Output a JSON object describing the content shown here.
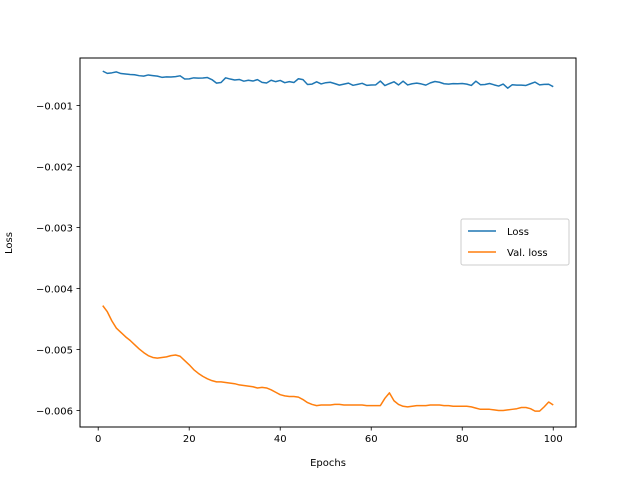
{
  "chart_data": {
    "type": "line",
    "xlabel": "Epochs",
    "ylabel": "Loss",
    "xlim": [
      -4,
      105
    ],
    "ylim": [
      -0.00627,
      -0.00022
    ],
    "xticks": [
      0,
      20,
      40,
      60,
      80,
      100
    ],
    "xtick_labels": [
      "0",
      "20",
      "40",
      "60",
      "80",
      "100"
    ],
    "yticks": [
      -0.001,
      -0.002,
      -0.003,
      -0.004,
      -0.005,
      -0.006
    ],
    "ytick_labels": [
      "−0.001",
      "−0.002",
      "−0.003",
      "−0.004",
      "−0.005",
      "−0.006"
    ],
    "grid": false,
    "legend_position": "center-right",
    "x": [
      1,
      2,
      3,
      4,
      5,
      6,
      7,
      8,
      9,
      10,
      11,
      12,
      13,
      14,
      15,
      16,
      17,
      18,
      19,
      20,
      21,
      22,
      23,
      24,
      25,
      26,
      27,
      28,
      29,
      30,
      31,
      32,
      33,
      34,
      35,
      36,
      37,
      38,
      39,
      40,
      41,
      42,
      43,
      44,
      45,
      46,
      47,
      48,
      49,
      50,
      51,
      52,
      53,
      54,
      55,
      56,
      57,
      58,
      59,
      60,
      61,
      62,
      63,
      64,
      65,
      66,
      67,
      68,
      69,
      70,
      71,
      72,
      73,
      74,
      75,
      76,
      77,
      78,
      79,
      80,
      81,
      82,
      83,
      84,
      85,
      86,
      87,
      88,
      89,
      90,
      91,
      92,
      93,
      94,
      95,
      96,
      97,
      98,
      99,
      100
    ],
    "series": [
      {
        "name": "Loss",
        "color": "#1f77b4",
        "values": [
          -0.000435,
          -0.000472,
          -0.000463,
          -0.000448,
          -0.000475,
          -0.000483,
          -0.00049,
          -0.000495,
          -0.00051,
          -0.000517,
          -0.000498,
          -0.000508,
          -0.000517,
          -0.000537,
          -0.00053,
          -0.000532,
          -0.000525,
          -0.000512,
          -0.000565,
          -0.000562,
          -0.000545,
          -0.00055,
          -0.000548,
          -0.00054,
          -0.000575,
          -0.000632,
          -0.000622,
          -0.000545,
          -0.000565,
          -0.00058,
          -0.000572,
          -0.0006,
          -0.000585,
          -0.000598,
          -0.000575,
          -0.00062,
          -0.00063,
          -0.000585,
          -0.000608,
          -0.000588,
          -0.000625,
          -0.000608,
          -0.000622,
          -0.00056,
          -0.000575,
          -0.000655,
          -0.000648,
          -0.00061,
          -0.000645,
          -0.000625,
          -0.000618,
          -0.00064,
          -0.000665,
          -0.000648,
          -0.000632,
          -0.000668,
          -0.000652,
          -0.000635,
          -0.000668,
          -0.000662,
          -0.00066,
          -0.000598,
          -0.000672,
          -0.00064,
          -0.00061,
          -0.000662,
          -0.0006,
          -0.000662,
          -0.000642,
          -0.000632,
          -0.000645,
          -0.000665,
          -0.000628,
          -0.000605,
          -0.000618,
          -0.000642,
          -0.000648,
          -0.00064,
          -0.000642,
          -0.000638,
          -0.000648,
          -0.00067,
          -0.0006,
          -0.000658,
          -0.000655,
          -0.000638,
          -0.00066,
          -0.00068,
          -0.000648,
          -0.000715,
          -0.000658,
          -0.000665,
          -0.000665,
          -0.00067,
          -0.000642,
          -0.000615,
          -0.00066,
          -0.000652,
          -0.00065,
          -0.00069
        ]
      },
      {
        "name": "Val. loss",
        "color": "#ff7f0e",
        "values": [
          -0.00428,
          -0.00438,
          -0.00453,
          -0.00465,
          -0.00472,
          -0.00479,
          -0.00485,
          -0.00492,
          -0.00499,
          -0.00505,
          -0.0051,
          -0.00513,
          -0.00514,
          -0.00513,
          -0.00512,
          -0.0051,
          -0.00509,
          -0.00511,
          -0.00518,
          -0.00525,
          -0.00533,
          -0.00539,
          -0.00544,
          -0.00548,
          -0.00551,
          -0.00553,
          -0.00553,
          -0.00554,
          -0.00555,
          -0.00556,
          -0.00558,
          -0.00559,
          -0.0056,
          -0.00561,
          -0.00563,
          -0.00562,
          -0.00563,
          -0.00566,
          -0.0057,
          -0.00574,
          -0.00576,
          -0.00577,
          -0.00577,
          -0.00578,
          -0.00582,
          -0.00587,
          -0.0059,
          -0.00592,
          -0.00591,
          -0.00591,
          -0.00591,
          -0.0059,
          -0.0059,
          -0.00591,
          -0.00591,
          -0.00591,
          -0.00591,
          -0.00591,
          -0.00592,
          -0.00592,
          -0.00592,
          -0.00592,
          -0.0058,
          -0.00571,
          -0.00584,
          -0.0059,
          -0.00593,
          -0.00594,
          -0.00593,
          -0.00592,
          -0.00592,
          -0.00592,
          -0.00591,
          -0.00591,
          -0.00591,
          -0.00592,
          -0.00592,
          -0.00593,
          -0.00593,
          -0.00593,
          -0.00593,
          -0.00594,
          -0.00596,
          -0.00598,
          -0.00598,
          -0.00598,
          -0.00599,
          -0.006,
          -0.006,
          -0.00599,
          -0.00598,
          -0.00597,
          -0.00595,
          -0.00595,
          -0.00597,
          -0.00601,
          -0.00601,
          -0.00594,
          -0.00586,
          -0.00591
        ]
      }
    ]
  }
}
